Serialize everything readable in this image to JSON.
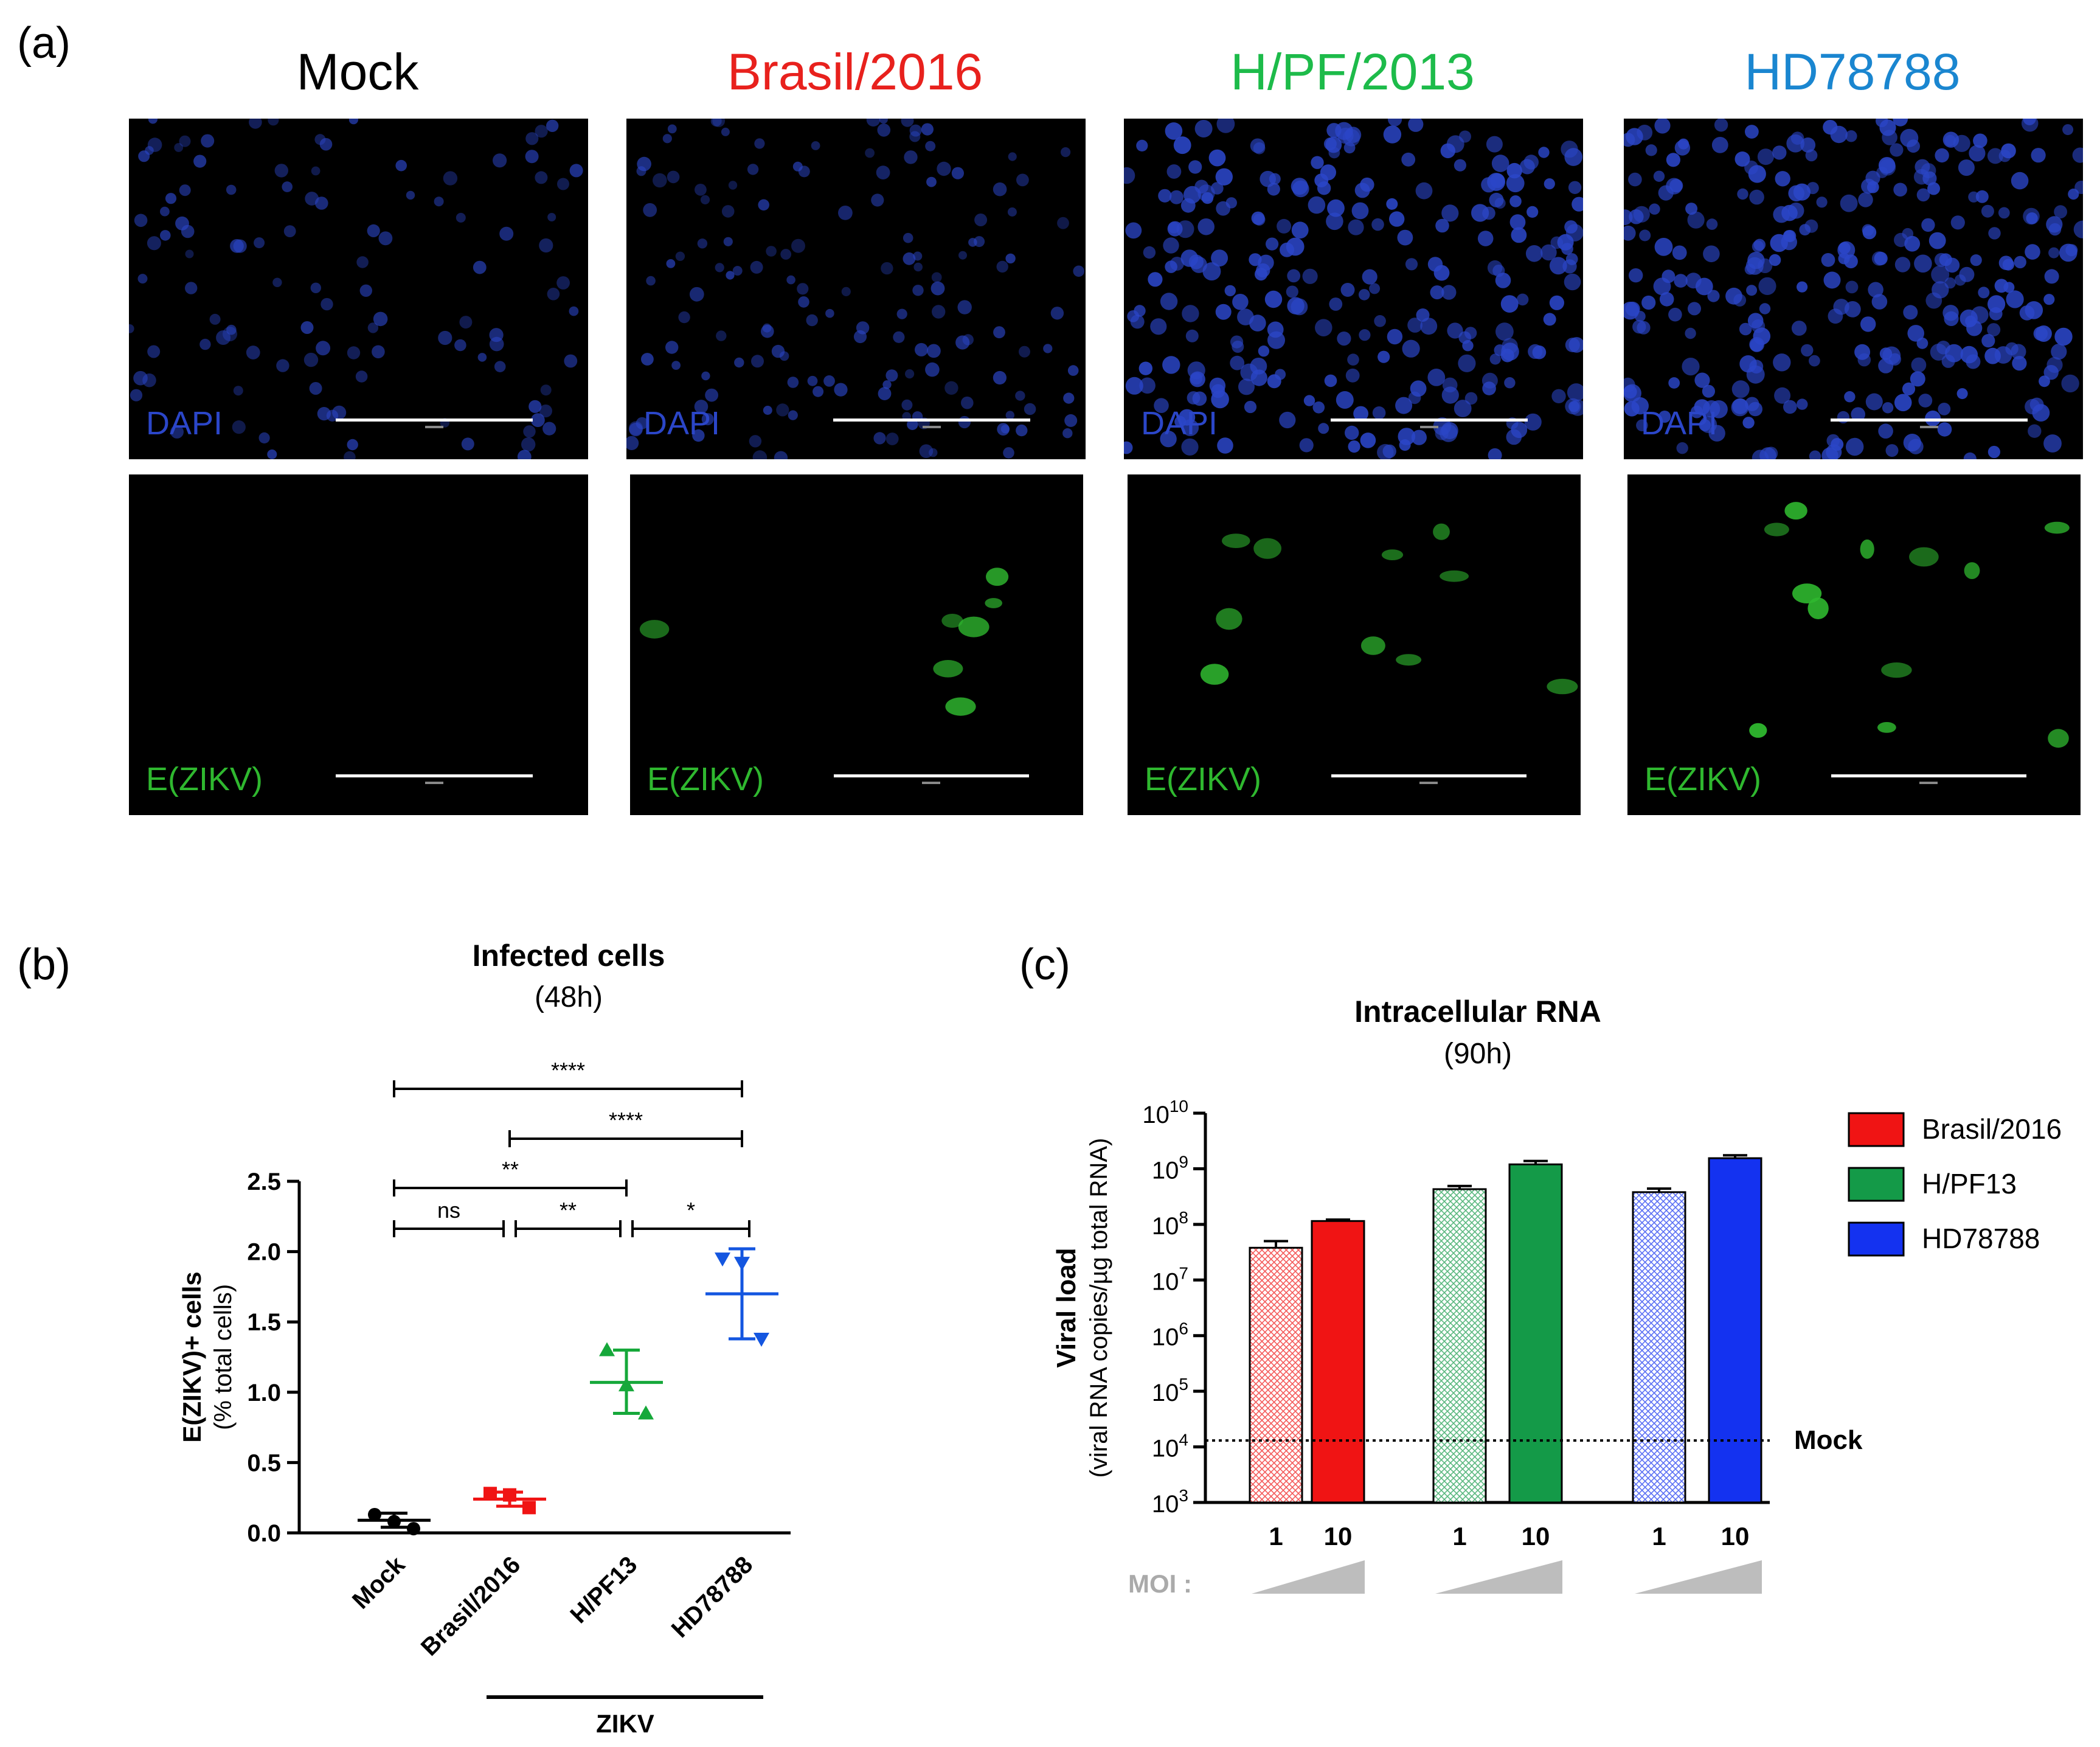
{
  "panel_a": {
    "letter": "(a)",
    "columns": [
      {
        "title": "Mock",
        "color": "#000000",
        "dapi_label": "DAPI",
        "e_label": "E(ZIKV)"
      },
      {
        "title": "Brasil/2016",
        "color": "#e8211d",
        "dapi_label": "DAPI",
        "e_label": "E(ZIKV)"
      },
      {
        "title": "H/PF/2013",
        "color": "#1dbb4a",
        "dapi_label": "DAPI",
        "e_label": "E(ZIKV)"
      },
      {
        "title": "HD78788",
        "color": "#1a86d0",
        "dapi_label": "DAPI",
        "e_label": "E(ZIKV)"
      }
    ],
    "dapi_color": "#2b46c8",
    "e_color": "#2fb82f"
  },
  "panel_b": {
    "letter": "(b)",
    "title": "Infected cells",
    "subtitle": "(48h)",
    "ylabel": "E(ZIKV)+ cells",
    "ylabel2": "(% total cells)",
    "yticks": [
      "0.0",
      "0.5",
      "1.0",
      "1.5",
      "2.0",
      "2.5"
    ],
    "group_label": "ZIKV",
    "significance": [
      {
        "label": "****"
      },
      {
        "label": "****"
      },
      {
        "label": "**"
      },
      {
        "label": "ns"
      },
      {
        "label": "**"
      },
      {
        "label": "*"
      }
    ]
  },
  "panel_c": {
    "letter": "(c)",
    "title": "Intracellular RNA",
    "subtitle": "(90h)",
    "ylabel": "Viral load",
    "ylabel2": "(viral RNA copies/µg total RNA)",
    "mock_label": "Mock",
    "moi_label": "MOI :",
    "moi_values": [
      "1",
      "10"
    ],
    "legend": [
      {
        "name": "Brasil/2016",
        "color": "#f01414"
      },
      {
        "name": "H/PF13",
        "color": "#149a48"
      },
      {
        "name": "HD78788",
        "color": "#1432f0"
      }
    ]
  },
  "chart_data": [
    {
      "type": "scatter",
      "title": "Infected cells",
      "subtitle": "(48h)",
      "ylabel": "E(ZIKV)+ cells (% total cells)",
      "ylim": [
        0,
        2.5
      ],
      "categories": [
        "Mock",
        "Brasil/2016",
        "H/PF13",
        "HD78788"
      ],
      "colors": [
        "#000000",
        "#f01414",
        "#16a83a",
        "#1456e0"
      ],
      "points": [
        [
          0.13,
          0.08,
          0.03
        ],
        [
          0.28,
          0.27,
          0.18
        ],
        [
          1.3,
          1.05,
          0.85
        ],
        [
          1.95,
          1.92,
          1.38
        ]
      ],
      "mean": [
        0.09,
        0.24,
        1.07,
        1.7
      ],
      "sd_low": [
        0.04,
        0.19,
        0.85,
        1.38
      ],
      "sd_high": [
        0.14,
        0.29,
        1.3,
        2.02
      ],
      "significance": [
        {
          "from": "Mock",
          "to": "HD78788",
          "label": "****"
        },
        {
          "from": "Brasil/2016",
          "to": "HD78788",
          "label": "****"
        },
        {
          "from": "Mock",
          "to": "H/PF13",
          "label": "**"
        },
        {
          "from": "Mock",
          "to": "Brasil/2016",
          "label": "ns"
        },
        {
          "from": "Brasil/2016",
          "to": "H/PF13",
          "label": "**"
        },
        {
          "from": "H/PF13",
          "to": "HD78788",
          "label": "*"
        }
      ]
    },
    {
      "type": "bar",
      "title": "Intracellular RNA",
      "subtitle": "(90h)",
      "ylabel": "Viral load (viral RNA copies/µg total RNA)",
      "yscale": "log",
      "ylim": [
        1000,
        10000000000
      ],
      "ytick_exponents": [
        3,
        4,
        5,
        6,
        7,
        8,
        9,
        10
      ],
      "categories": [
        "1",
        "10"
      ],
      "xlabel": "MOI :",
      "series": [
        {
          "name": "Brasil/2016",
          "color": "#f01414",
          "values": [
            38000000,
            115000000
          ],
          "errors": [
            50000000,
            122000000
          ]
        },
        {
          "name": "H/PF13",
          "color": "#149a48",
          "values": [
            430000000,
            1200000000
          ],
          "errors": [
            490000000,
            1380000000
          ]
        },
        {
          "name": "HD78788",
          "color": "#1432f0",
          "values": [
            380000000,
            1550000000
          ],
          "errors": [
            440000000,
            1750000000
          ]
        }
      ],
      "reference_line": {
        "label": "Mock",
        "value": 13000
      }
    }
  ]
}
